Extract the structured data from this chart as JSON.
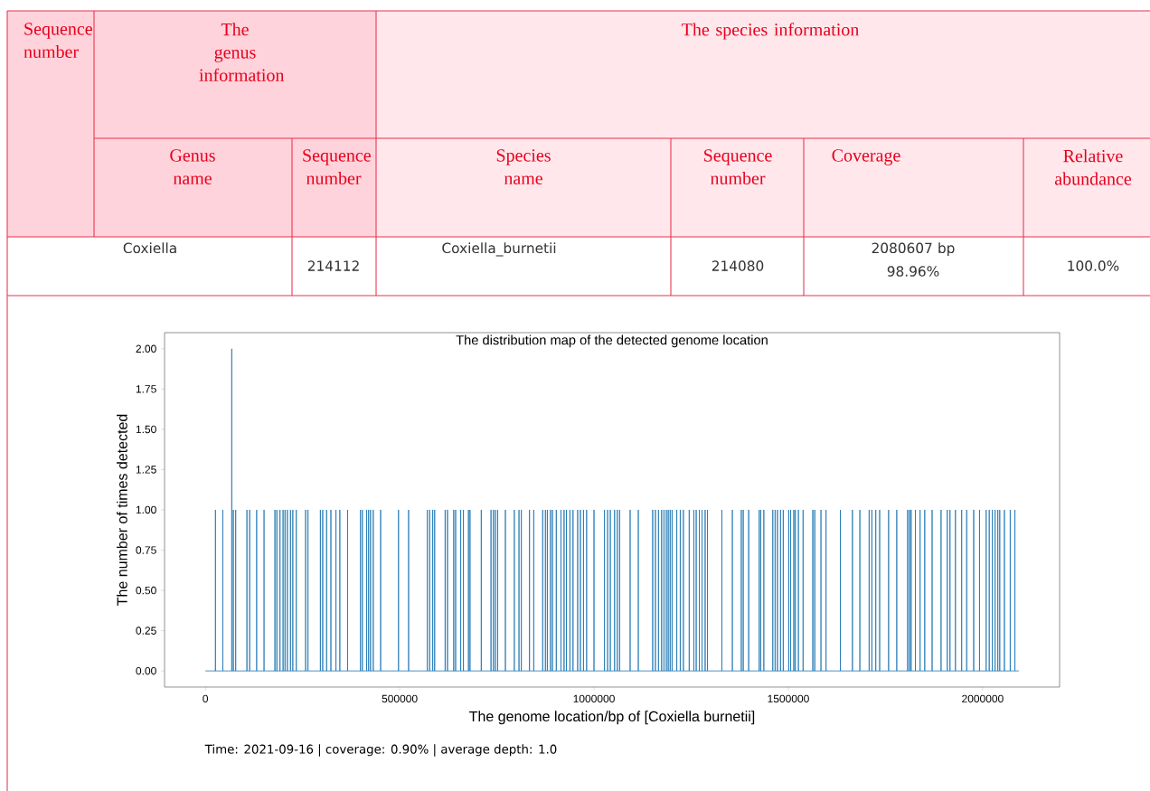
{
  "chart_data": [
    {
      "type": "other",
      "annotations": [
        "Sequence number",
        "The genus information",
        "The species information",
        "Genus name",
        "Sequence number",
        "Species name",
        "Sequence number",
        "Coverage",
        "Relative abundance",
        "Coxiella",
        "214112",
        "Coxiella_burnetii",
        "214080",
        "2080607 bp",
        "98.96%",
        "100.0%"
      ]
    },
    {
      "type": "line",
      "title": "The distribution map of the detected genome location",
      "xlabel": "The genome location/bp of [Coxiella burnetii]",
      "ylabel": "The number of times detected",
      "annotations": [
        "Time: 2021-09-16 | coverage: 0.90% | average depth: 1.0"
      ],
      "color": "#1f77b4",
      "xlim": [
        -105000,
        2198000
      ],
      "ylim": [
        -0.1,
        2.1
      ],
      "xticks": [
        0,
        500000,
        1000000,
        1500000,
        2000000
      ],
      "yticks": [
        {
          "value": 0,
          "label": "0.00"
        },
        {
          "value": 0.25,
          "label": "0.25"
        },
        {
          "value": 0.5,
          "label": "0.50"
        },
        {
          "value": 0.75,
          "label": "0.75"
        },
        {
          "value": 1,
          "label": "1.00"
        },
        {
          "value": 1.25,
          "label": "1.25"
        },
        {
          "value": 1.5,
          "label": "1.50"
        },
        {
          "value": 1.75,
          "label": "1.75"
        },
        {
          "value": 2,
          "label": "2.00"
        }
      ],
      "x": [
        0,
        26000,
        26000,
        26000,
        45000,
        45000,
        45000,
        68000,
        68000,
        68000,
        72000,
        72000,
        72000,
        78000,
        78000,
        78000,
        107000,
        107000,
        107000,
        114000,
        114000,
        114000,
        132000,
        132000,
        132000,
        151000,
        151000,
        151000,
        179000,
        179000,
        179000,
        184000,
        184000,
        184000,
        192000,
        192000,
        192000,
        200000,
        200000,
        200000,
        205000,
        205000,
        205000,
        211000,
        211000,
        211000,
        219000,
        219000,
        219000,
        225000,
        225000,
        225000,
        234000,
        234000,
        234000,
        258000,
        258000,
        258000,
        264000,
        264000,
        264000,
        296000,
        296000,
        296000,
        302000,
        302000,
        302000,
        312000,
        312000,
        312000,
        323000,
        323000,
        323000,
        336000,
        336000,
        336000,
        346000,
        346000,
        346000,
        366000,
        366000,
        366000,
        399000,
        399000,
        399000,
        404000,
        404000,
        404000,
        415000,
        415000,
        415000,
        420000,
        420000,
        420000,
        425000,
        425000,
        425000,
        432000,
        432000,
        432000,
        451000,
        451000,
        451000,
        497000,
        497000,
        497000,
        523000,
        523000,
        523000,
        571000,
        571000,
        571000,
        577000,
        577000,
        577000,
        585000,
        585000,
        585000,
        590000,
        590000,
        590000,
        617000,
        617000,
        617000,
        623000,
        623000,
        623000,
        639000,
        639000,
        639000,
        644000,
        644000,
        644000,
        657000,
        657000,
        657000,
        664000,
        664000,
        664000,
        677000,
        677000,
        677000,
        681000,
        681000,
        681000,
        710000,
        710000,
        710000,
        735000,
        735000,
        735000,
        741000,
        741000,
        741000,
        746000,
        746000,
        746000,
        752000,
        752000,
        752000,
        772000,
        772000,
        772000,
        795000,
        795000,
        795000,
        807000,
        807000,
        807000,
        813000,
        813000,
        813000,
        834000,
        834000,
        834000,
        845000,
        845000,
        845000,
        868000,
        868000,
        868000,
        875000,
        875000,
        875000,
        880000,
        880000,
        880000,
        888000,
        888000,
        888000,
        893000,
        893000,
        893000,
        903000,
        903000,
        903000,
        915000,
        915000,
        915000,
        923000,
        923000,
        923000,
        929000,
        929000,
        929000,
        938000,
        938000,
        938000,
        946000,
        946000,
        946000,
        958000,
        958000,
        958000,
        965000,
        965000,
        965000,
        973000,
        973000,
        973000,
        981000,
        981000,
        981000,
        1000000,
        1000000,
        1000000,
        1027000,
        1027000,
        1027000,
        1035000,
        1035000,
        1035000,
        1042000,
        1042000,
        1042000,
        1053000,
        1053000,
        1053000,
        1060000,
        1060000,
        1060000,
        1066000,
        1066000,
        1066000,
        1093000,
        1093000,
        1093000,
        1114000,
        1114000,
        1114000,
        1151000,
        1151000,
        1151000,
        1158000,
        1158000,
        1158000,
        1166000,
        1166000,
        1166000,
        1174000,
        1174000,
        1174000,
        1180000,
        1180000,
        1180000,
        1186000,
        1186000,
        1186000,
        1191000,
        1191000,
        1191000,
        1196000,
        1196000,
        1196000,
        1201000,
        1201000,
        1201000,
        1213000,
        1213000,
        1213000,
        1222000,
        1222000,
        1222000,
        1230000,
        1230000,
        1230000,
        1245000,
        1245000,
        1245000,
        1257000,
        1257000,
        1257000,
        1263000,
        1263000,
        1263000,
        1271000,
        1271000,
        1271000,
        1278000,
        1278000,
        1278000,
        1286000,
        1286000,
        1286000,
        1292000,
        1292000,
        1292000,
        1329000,
        1329000,
        1329000,
        1356000,
        1356000,
        1356000,
        1379000,
        1379000,
        1379000,
        1384000,
        1384000,
        1384000,
        1398000,
        1398000,
        1398000,
        1425000,
        1425000,
        1425000,
        1429000,
        1429000,
        1429000,
        1437000,
        1437000,
        1437000,
        1460000,
        1460000,
        1460000,
        1466000,
        1466000,
        1466000,
        1472000,
        1472000,
        1472000,
        1480000,
        1480000,
        1480000,
        1487000,
        1487000,
        1487000,
        1501000,
        1501000,
        1501000,
        1506000,
        1506000,
        1506000,
        1514000,
        1514000,
        1514000,
        1518000,
        1518000,
        1518000,
        1526000,
        1526000,
        1526000,
        1538000,
        1538000,
        1538000,
        1563000,
        1563000,
        1563000,
        1568000,
        1568000,
        1568000,
        1584000,
        1584000,
        1584000,
        1597000,
        1597000,
        1597000,
        1634000,
        1634000,
        1634000,
        1665000,
        1665000,
        1665000,
        1684000,
        1684000,
        1684000,
        1708000,
        1708000,
        1708000,
        1715000,
        1715000,
        1715000,
        1725000,
        1725000,
        1725000,
        1735000,
        1735000,
        1735000,
        1758000,
        1758000,
        1758000,
        1779000,
        1779000,
        1779000,
        1807000,
        1807000,
        1807000,
        1812000,
        1812000,
        1812000,
        1816000,
        1816000,
        1816000,
        1827000,
        1827000,
        1827000,
        1839000,
        1839000,
        1839000,
        1851000,
        1851000,
        1851000,
        1870000,
        1870000,
        1870000,
        1893000,
        1893000,
        1893000,
        1909000,
        1909000,
        1909000,
        1916000,
        1916000,
        1916000,
        1930000,
        1930000,
        1930000,
        1946000,
        1946000,
        1946000,
        1959000,
        1959000,
        1959000,
        1977000,
        1977000,
        1977000,
        1992000,
        1992000,
        1992000,
        2009000,
        2009000,
        2009000,
        2017000,
        2017000,
        2017000,
        2025000,
        2025000,
        2025000,
        2032000,
        2032000,
        2032000,
        2039000,
        2039000,
        2039000,
        2044000,
        2044000,
        2044000,
        2056000,
        2056000,
        2056000,
        2071000,
        2071000,
        2071000,
        2083000,
        2083000,
        2083000,
        2093000
      ],
      "values": [
        0,
        0,
        1,
        0,
        0,
        1,
        0,
        0,
        2,
        0,
        0,
        1,
        0,
        0,
        1,
        0,
        0,
        1,
        0,
        0,
        1,
        0,
        0,
        1,
        0,
        0,
        1,
        0,
        0,
        1,
        0,
        0,
        1,
        0,
        0,
        1,
        0,
        0,
        1,
        0,
        0,
        1,
        0,
        0,
        1,
        0,
        0,
        1,
        0,
        0,
        1,
        0,
        0,
        1,
        0,
        0,
        1,
        0,
        0,
        1,
        0,
        0,
        1,
        0,
        0,
        1,
        0,
        0,
        1,
        0,
        0,
        1,
        0,
        0,
        1,
        0,
        0,
        1,
        0,
        0,
        1,
        0,
        0,
        1,
        0,
        0,
        1,
        0,
        0,
        1,
        0,
        0,
        1,
        0,
        0,
        1,
        0,
        0,
        1,
        0,
        0,
        1,
        0,
        0,
        1,
        0,
        0,
        1,
        0,
        0,
        1,
        0,
        0,
        1,
        0,
        0,
        1,
        0,
        0,
        1,
        0,
        0,
        1,
        0,
        0,
        1,
        0,
        0,
        1,
        0,
        0,
        1,
        0,
        0,
        1,
        0,
        0,
        1,
        0,
        0,
        1,
        0,
        0,
        1,
        0,
        0,
        1,
        0,
        0,
        1,
        0,
        0,
        1,
        0,
        0,
        1,
        0,
        0,
        1,
        0,
        0,
        1,
        0,
        0,
        1,
        0,
        0,
        1,
        0,
        0,
        1,
        0,
        0,
        1,
        0,
        0,
        1,
        0,
        0,
        1,
        0,
        0,
        1,
        0,
        0,
        1,
        0,
        0,
        1,
        0,
        0,
        1,
        0,
        0,
        1,
        0,
        0,
        1,
        0,
        0,
        1,
        0,
        0,
        1,
        0,
        0,
        1,
        0,
        0,
        1,
        0,
        0,
        1,
        0,
        0,
        1,
        0,
        0,
        1,
        0,
        0,
        1,
        0,
        0,
        1,
        0,
        0,
        1,
        0,
        0,
        1,
        0,
        0,
        1,
        0,
        0,
        1,
        0,
        0,
        1,
        0,
        0,
        1,
        0,
        0,
        1,
        0,
        0,
        1,
        0,
        0,
        1,
        0,
        0,
        1,
        0,
        0,
        1,
        0,
        0,
        1,
        0,
        0,
        1,
        0,
        0,
        1,
        0,
        0,
        1,
        0,
        0,
        1,
        0,
        0,
        1,
        0,
        0,
        1,
        0,
        0,
        1,
        0,
        0,
        1,
        0,
        0,
        1,
        0,
        0,
        1,
        0,
        0,
        1,
        0,
        0,
        1,
        0,
        0,
        1,
        0,
        0,
        1,
        0,
        0,
        1,
        0,
        0,
        1,
        0,
        0,
        1,
        0,
        0,
        1,
        0,
        0,
        1,
        0,
        0,
        1,
        0,
        0,
        1,
        0,
        0,
        1,
        0,
        0,
        1,
        0,
        0,
        1,
        0,
        0,
        1,
        0,
        0,
        1,
        0,
        0,
        1,
        0,
        0,
        1,
        0,
        0,
        1,
        0,
        0,
        1,
        0,
        0,
        1,
        0,
        0,
        1,
        0,
        0,
        1,
        0,
        0,
        1,
        0,
        0,
        1,
        0,
        0,
        1,
        0,
        0,
        1,
        0,
        0,
        1,
        0,
        0,
        1,
        0,
        0,
        1,
        0,
        0,
        1,
        0,
        0,
        1,
        0,
        0,
        1,
        0,
        0,
        1,
        0,
        0,
        1,
        0,
        0,
        1,
        0,
        0,
        1,
        0,
        0,
        1,
        0,
        0,
        1,
        0,
        0,
        1,
        0,
        0,
        1,
        0,
        0,
        1,
        0,
        0,
        1,
        0,
        0,
        1,
        0,
        0,
        1,
        0,
        0,
        1,
        0,
        0,
        1,
        0,
        0,
        1,
        0,
        0,
        1,
        0,
        0,
        1,
        0,
        0,
        1,
        0,
        0,
        1,
        0,
        0,
        1,
        0,
        0,
        1,
        0,
        0,
        1,
        0,
        0,
        1,
        0,
        0,
        1,
        0,
        0,
        1,
        0,
        0,
        1,
        0,
        0,
        1,
        0,
        0,
        1,
        0,
        0
      ]
    }
  ]
}
